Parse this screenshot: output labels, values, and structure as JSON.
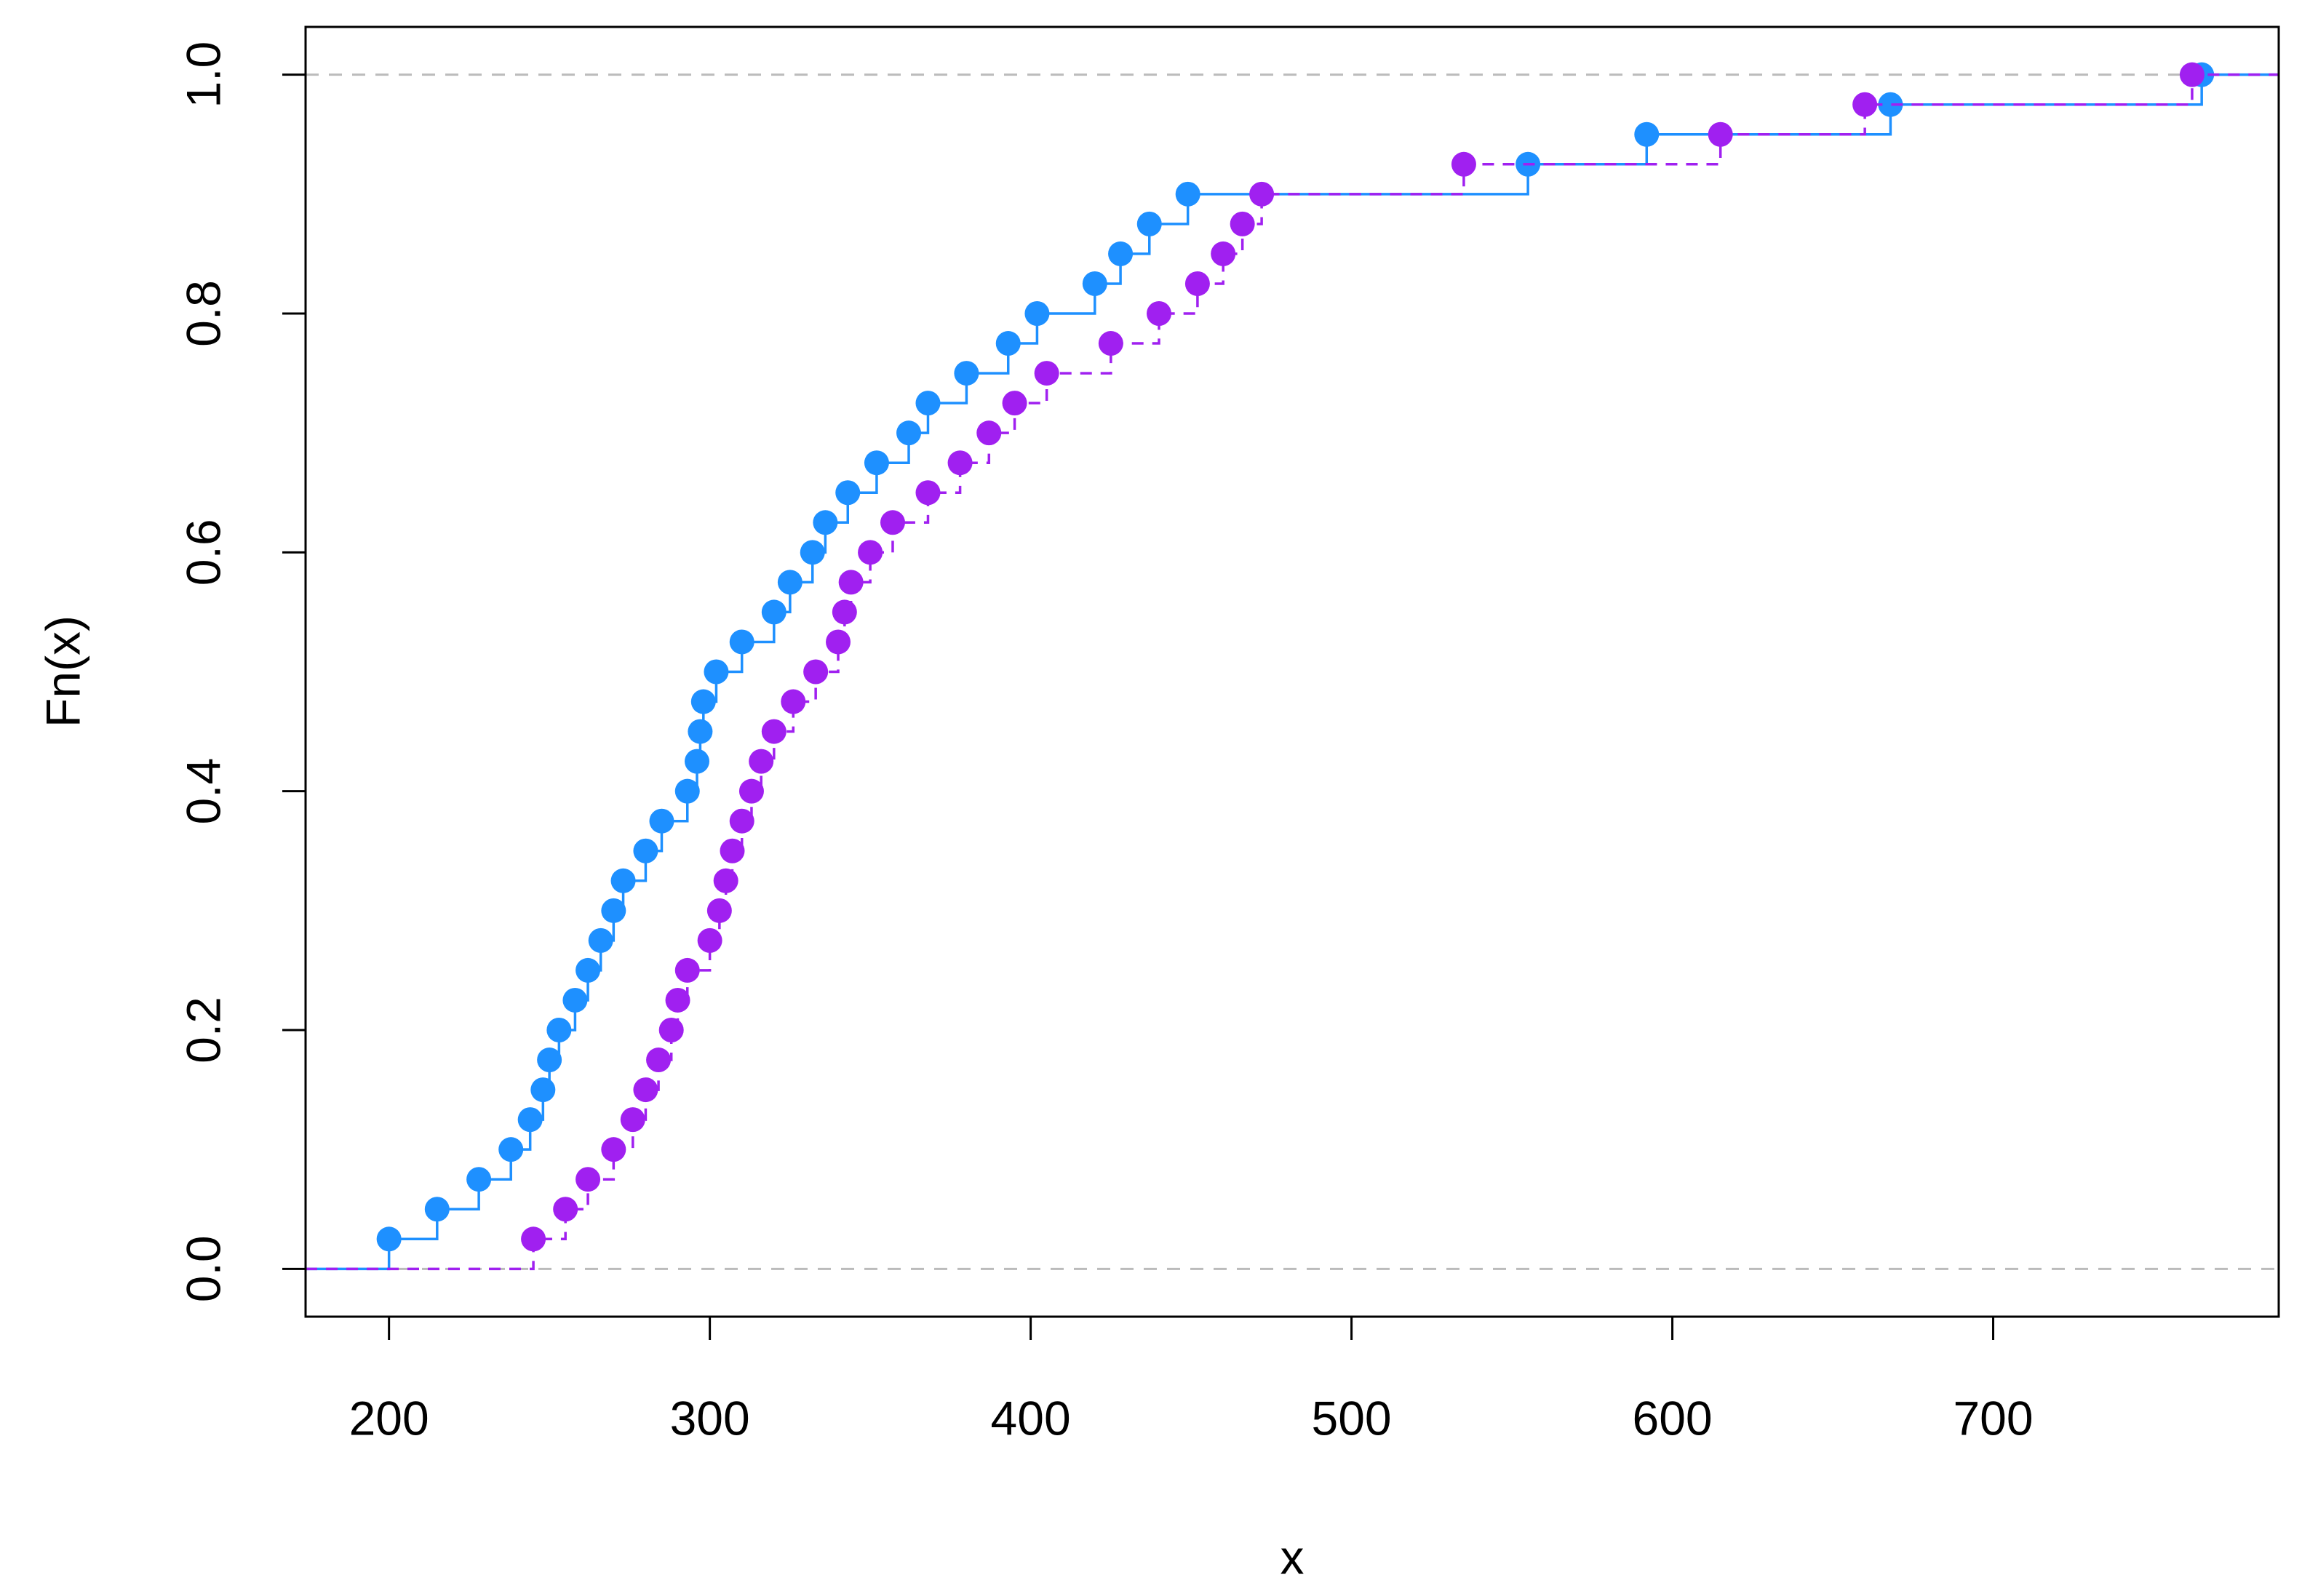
{
  "chart_data": {
    "type": "ecdf",
    "xlabel": "x",
    "ylabel": "Fn(x)",
    "xlim": [
      174,
      789
    ],
    "ylim": [
      -0.04,
      1.04
    ],
    "xticks": [
      200,
      300,
      400,
      500,
      600,
      700
    ],
    "yticks": [
      {
        "value": 0,
        "label": "0.0"
      },
      0.2,
      0.4,
      0.6,
      0.8,
      {
        "value": 1,
        "label": "1.0"
      }
    ],
    "series": [
      {
        "color": "#1e90ff",
        "dashed": false,
        "values": [
          200,
          215,
          228,
          238,
          244,
          248,
          250,
          253,
          258,
          262,
          266,
          270,
          273,
          280,
          285,
          293,
          296,
          297,
          298,
          302,
          310,
          320,
          325,
          332,
          336,
          343,
          352,
          362,
          368,
          380,
          393,
          402,
          420,
          428,
          437,
          449,
          555,
          592,
          668,
          765
        ]
      },
      {
        "color": "#a020f0",
        "dashed": true,
        "values": [
          245,
          255,
          262,
          270,
          276,
          280,
          284,
          288,
          290,
          293,
          300,
          303,
          305,
          307,
          310,
          313,
          316,
          320,
          326,
          333,
          340,
          342,
          344,
          350,
          357,
          368,
          378,
          387,
          395,
          405,
          425,
          440,
          452,
          460,
          466,
          472,
          535,
          615,
          660,
          762
        ]
      }
    ]
  }
}
